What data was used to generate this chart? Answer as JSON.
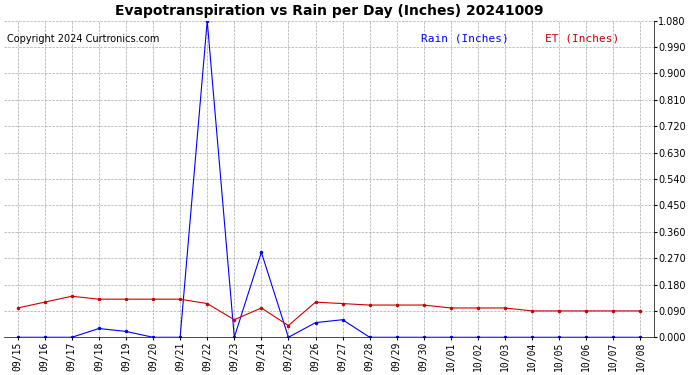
{
  "title": "Evapotranspiration vs Rain per Day (Inches) 20241009",
  "copyright": "Copyright 2024 Curtronics.com",
  "legend_rain": "Rain (Inches)",
  "legend_et": "ET (Inches)",
  "rain_color": "#0000ff",
  "et_color": "#cc0000",
  "background_color": "#ffffff",
  "grid_color": "#aaaaaa",
  "ylim": [
    0.0,
    1.08
  ],
  "yticks": [
    0.0,
    0.09,
    0.18,
    0.27,
    0.36,
    0.45,
    0.54,
    0.63,
    0.72,
    0.81,
    0.9,
    0.99,
    1.08
  ],
  "x_labels": [
    "09/15",
    "09/16",
    "09/17",
    "09/18",
    "09/19",
    "09/20",
    "09/21",
    "09/22",
    "09/23",
    "09/24",
    "09/25",
    "09/26",
    "09/27",
    "09/28",
    "09/29",
    "09/30",
    "10/01",
    "10/02",
    "10/03",
    "10/04",
    "10/05",
    "10/06",
    "10/07",
    "10/08"
  ],
  "rain_values": [
    0.0,
    0.0,
    0.0,
    0.03,
    0.02,
    0.0,
    0.0,
    1.08,
    0.0,
    0.29,
    0.0,
    0.05,
    0.06,
    0.0,
    0.0,
    0.0,
    0.0,
    0.0,
    0.0,
    0.0,
    0.0,
    0.0,
    0.0,
    0.0
  ],
  "et_values": [
    0.1,
    0.12,
    0.14,
    0.13,
    0.13,
    0.13,
    0.13,
    0.115,
    0.06,
    0.1,
    0.04,
    0.12,
    0.115,
    0.11,
    0.11,
    0.11,
    0.1,
    0.1,
    0.1,
    0.09,
    0.09,
    0.09,
    0.09,
    0.09
  ],
  "title_fontsize": 10,
  "copyright_fontsize": 7,
  "legend_fontsize": 8,
  "tick_fontsize": 7,
  "ytick_fontsize": 7
}
